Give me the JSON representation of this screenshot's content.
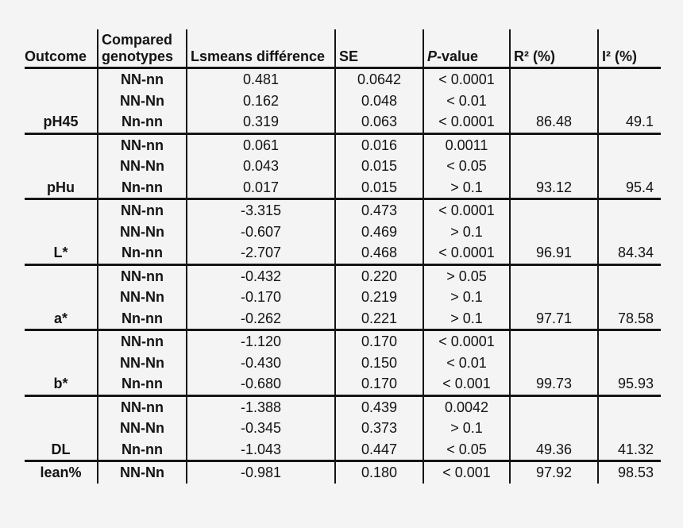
{
  "table": {
    "header": {
      "outcome": "Outcome",
      "genotypes": "Compared genotypes",
      "lsmeans": "Lsmeans différence",
      "se": "SE",
      "p_italic": "P",
      "p_rest": "-value",
      "r2": "R² (%)",
      "i2": "I² (%)"
    },
    "groups": [
      {
        "outcome": "pH45",
        "r2": "86.48",
        "i2": "49.1",
        "rows": [
          {
            "genotypes": "NN-nn",
            "lsmeans": "0.481",
            "se": "0.0642",
            "p": "< 0.0001"
          },
          {
            "genotypes": "NN-Nn",
            "lsmeans": "0.162",
            "se": "0.048",
            "p": "< 0.01"
          },
          {
            "genotypes": "Nn-nn",
            "lsmeans": "0.319",
            "se": "0.063",
            "p": "< 0.0001"
          }
        ]
      },
      {
        "outcome": "pHu",
        "r2": "93.12",
        "i2": "95.4",
        "rows": [
          {
            "genotypes": "NN-nn",
            "lsmeans": "0.061",
            "se": "0.016",
            "p": "0.0011"
          },
          {
            "genotypes": "NN-Nn",
            "lsmeans": "0.043",
            "se": "0.015",
            "p": "< 0.05"
          },
          {
            "genotypes": "Nn-nn",
            "lsmeans": "0.017",
            "se": "0.015",
            "p": "> 0.1"
          }
        ]
      },
      {
        "outcome": "L*",
        "r2": "96.91",
        "i2": "84.34",
        "rows": [
          {
            "genotypes": "NN-nn",
            "lsmeans": "-3.315",
            "se": "0.473",
            "p": "< 0.0001"
          },
          {
            "genotypes": "NN-Nn",
            "lsmeans": "-0.607",
            "se": "0.469",
            "p": "> 0.1"
          },
          {
            "genotypes": "Nn-nn",
            "lsmeans": "-2.707",
            "se": "0.468",
            "p": "< 0.0001"
          }
        ]
      },
      {
        "outcome": "a*",
        "r2": "97.71",
        "i2": "78.58",
        "rows": [
          {
            "genotypes": "NN-nn",
            "lsmeans": "-0.432",
            "se": "0.220",
            "p": "> 0.05"
          },
          {
            "genotypes": "NN-Nn",
            "lsmeans": "-0.170",
            "se": "0.219",
            "p": "> 0.1"
          },
          {
            "genotypes": "Nn-nn",
            "lsmeans": "-0.262",
            "se": "0.221",
            "p": "> 0.1"
          }
        ]
      },
      {
        "outcome": "b*",
        "r2": "99.73",
        "i2": "95.93",
        "rows": [
          {
            "genotypes": "NN-nn",
            "lsmeans": "-1.120",
            "se": "0.170",
            "p": "< 0.0001"
          },
          {
            "genotypes": "NN-Nn",
            "lsmeans": "-0.430",
            "se": "0.150",
            "p": "< 0.01"
          },
          {
            "genotypes": "Nn-nn",
            "lsmeans": "-0.680",
            "se": "0.170",
            "p": "< 0.001"
          }
        ]
      },
      {
        "outcome": "DL",
        "r2": "49.36",
        "i2": "41.32",
        "rows": [
          {
            "genotypes": "NN-nn",
            "lsmeans": "-1.388",
            "se": "0.439",
            "p": "0.0042"
          },
          {
            "genotypes": "NN-Nn",
            "lsmeans": "-0.345",
            "se": "0.373",
            "p": "> 0.1"
          },
          {
            "genotypes": "Nn-nn",
            "lsmeans": "-1.043",
            "se": "0.447",
            "p": "< 0.05"
          }
        ]
      },
      {
        "outcome": "lean%",
        "r2": "97.92",
        "i2": "98.53",
        "rows": [
          {
            "genotypes": "NN-Nn",
            "lsmeans": "-0.981",
            "se": "0.180",
            "p": "< 0.001"
          }
        ]
      }
    ]
  }
}
